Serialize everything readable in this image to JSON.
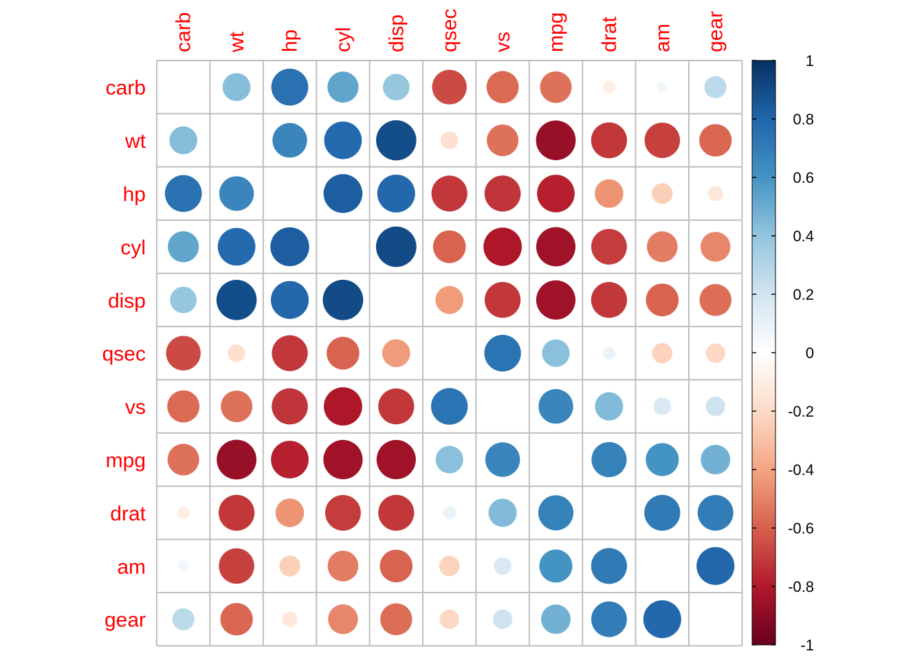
{
  "chart_data": {
    "type": "heatmap",
    "title": "",
    "variables": [
      "carb",
      "wt",
      "hp",
      "cyl",
      "disp",
      "qsec",
      "vs",
      "mpg",
      "drat",
      "am",
      "gear"
    ],
    "matrix": [
      [
        1.0,
        0.43,
        0.75,
        0.53,
        0.39,
        -0.66,
        -0.57,
        -0.55,
        -0.09,
        0.06,
        0.27
      ],
      [
        0.43,
        1.0,
        0.66,
        0.78,
        0.89,
        -0.17,
        -0.55,
        -0.87,
        -0.71,
        -0.69,
        -0.58
      ],
      [
        0.75,
        0.66,
        1.0,
        0.83,
        0.79,
        -0.71,
        -0.72,
        -0.78,
        -0.45,
        -0.24,
        -0.13
      ],
      [
        0.53,
        0.78,
        0.83,
        1.0,
        0.9,
        -0.59,
        -0.81,
        -0.85,
        -0.7,
        -0.52,
        -0.49
      ],
      [
        0.39,
        0.89,
        0.79,
        0.9,
        1.0,
        -0.43,
        -0.71,
        -0.85,
        -0.71,
        -0.59,
        -0.56
      ],
      [
        -0.66,
        -0.17,
        -0.71,
        -0.59,
        -0.43,
        1.0,
        0.74,
        0.42,
        0.09,
        -0.23,
        -0.21
      ],
      [
        -0.57,
        -0.55,
        -0.72,
        -0.81,
        -0.71,
        0.74,
        1.0,
        0.66,
        0.44,
        0.17,
        0.21
      ],
      [
        -0.55,
        -0.87,
        -0.78,
        -0.85,
        -0.85,
        0.42,
        0.66,
        1.0,
        0.68,
        0.6,
        0.48
      ],
      [
        -0.09,
        -0.71,
        -0.45,
        -0.7,
        -0.71,
        0.09,
        0.44,
        0.68,
        1.0,
        0.71,
        0.7
      ],
      [
        0.06,
        -0.69,
        -0.24,
        -0.52,
        -0.59,
        -0.23,
        0.17,
        0.6,
        0.71,
        1.0,
        0.79
      ],
      [
        0.27,
        -0.58,
        -0.13,
        -0.49,
        -0.56,
        -0.21,
        0.21,
        0.48,
        0.7,
        0.79,
        1.0
      ]
    ],
    "hide_diagonal": true,
    "color_scale": {
      "min": -1,
      "max": 1,
      "ticks": [
        "1",
        "0.8",
        "0.6",
        "0.4",
        "0.2",
        "0",
        "-0.2",
        "-0.4",
        "-0.6",
        "-0.8",
        "-1"
      ],
      "stops": [
        "#67001F",
        "#B2182B",
        "#D6604D",
        "#F4A582",
        "#FDDBC7",
        "#FFFFFF",
        "#D1E5F0",
        "#92C5DE",
        "#4393C3",
        "#2166AC",
        "#053061"
      ]
    },
    "label_color": "#FF0000",
    "grid_color": "#BEBEBE",
    "legend_position": "right"
  }
}
